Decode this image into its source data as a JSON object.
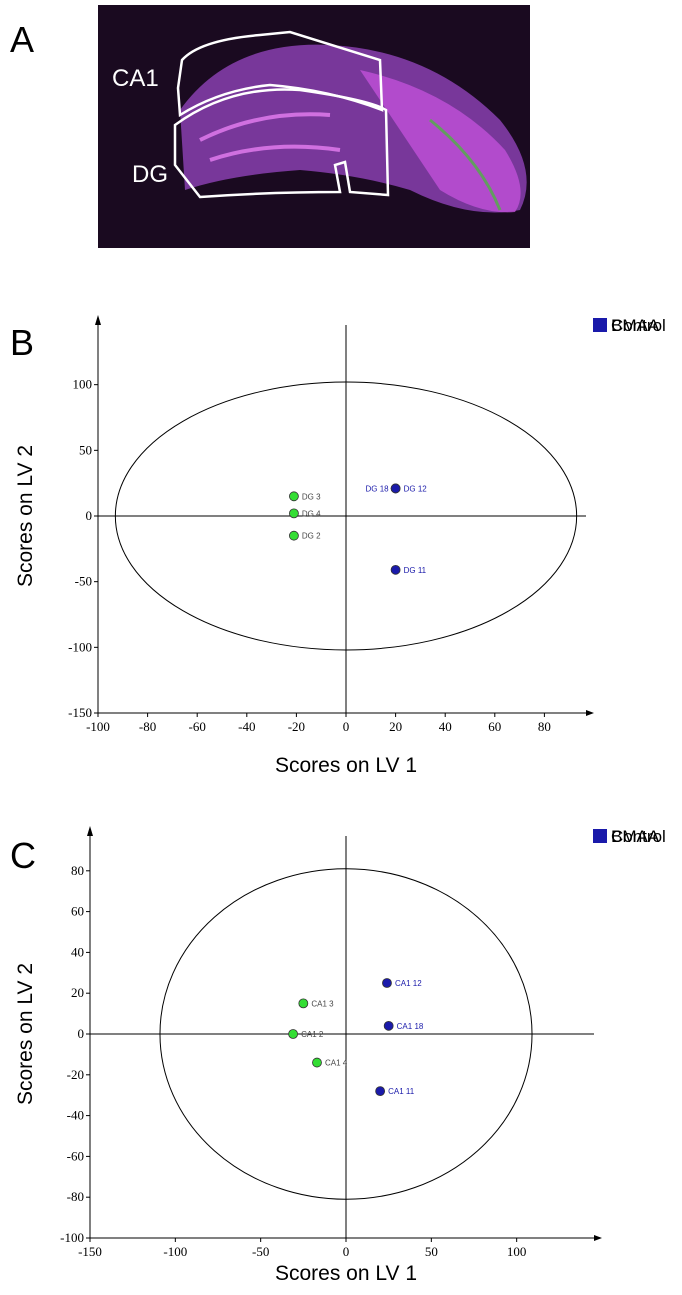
{
  "image_panel": {
    "panel": "A",
    "regions": [
      "CA1",
      "DG"
    ]
  },
  "chart_data": [
    {
      "type": "scatter",
      "panel": "B",
      "xlabel": "Scores on LV 1",
      "ylabel": "Scores on LV 2",
      "xlim": [
        -100,
        100
      ],
      "ylim": [
        -150,
        150
      ],
      "xticks": [
        -100,
        -80,
        -60,
        -40,
        -20,
        0,
        20,
        40,
        60,
        80
      ],
      "yticks": [
        -150,
        -100,
        -50,
        0,
        50,
        100
      ],
      "ellipse": {
        "rx": 93,
        "ry": 102
      },
      "series": [
        {
          "name": "Control",
          "color": "#33dd33",
          "x": [
            -21,
            -21,
            -21
          ],
          "values": [
            15,
            2,
            -15
          ],
          "point_labels": [
            "DG 3",
            "DG 4",
            "DG 2"
          ]
        },
        {
          "name": "BMAA",
          "color": "#1a1aaa",
          "x": [
            20,
            20,
            20
          ],
          "values": [
            21,
            21,
            -41
          ],
          "point_labels": [
            "DG 18",
            "DG 12",
            "DG 11"
          ]
        }
      ]
    },
    {
      "type": "scatter",
      "panel": "C",
      "xlabel": "Scores on LV 1",
      "ylabel": "Scores on LV 2",
      "xlim": [
        -150,
        150
      ],
      "ylim": [
        -100,
        100
      ],
      "xticks": [
        -150,
        -100,
        -50,
        0,
        50,
        100
      ],
      "yticks": [
        -100,
        -80,
        -60,
        -40,
        -20,
        0,
        20,
        40,
        60,
        80
      ],
      "ellipse": {
        "rx": 109,
        "ry": 81
      },
      "series": [
        {
          "name": "Control",
          "color": "#33dd33",
          "x": [
            -25,
            -31,
            -17
          ],
          "values": [
            15,
            0,
            -14
          ],
          "point_labels": [
            "CA1 3",
            "CA1 2",
            "CA1 4"
          ]
        },
        {
          "name": "BMAA",
          "color": "#1a1aaa",
          "x": [
            24,
            25,
            20
          ],
          "values": [
            25,
            4,
            -28
          ],
          "point_labels": [
            "CA1 12",
            "CA1 18",
            "CA1 11"
          ]
        }
      ]
    }
  ]
}
